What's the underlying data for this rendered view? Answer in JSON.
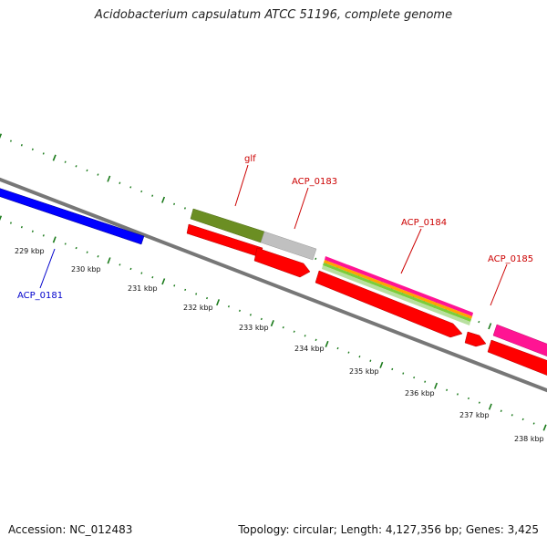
{
  "title": "Acidobacterium capsulatum ATCC 51196, complete genome",
  "footer": {
    "accession": "Accession: NC_012483",
    "summary": "Topology: circular; Length: 4,127,356 bp; Genes: 3,425"
  },
  "colors": {
    "backbone": "#808080",
    "ticks": "#1a7a1a",
    "cds": "#ff0000",
    "gene_olive": "#6b8e23",
    "gene_gray": "#c0c0c0",
    "gene_blue": "#0000ff",
    "gene_pink": "#ff1493",
    "label_red": "#cc0000",
    "label_blue": "#0000cc"
  },
  "ticks": [
    {
      "label": "229 kbp"
    },
    {
      "label": "230 kbp"
    },
    {
      "label": "231 kbp"
    },
    {
      "label": "232 kbp"
    },
    {
      "label": "233 kbp"
    },
    {
      "label": "234 kbp"
    },
    {
      "label": "235 kbp"
    },
    {
      "label": "236 kbp"
    },
    {
      "label": "237 kbp"
    },
    {
      "label": "238 kbp"
    }
  ],
  "gene_labels": [
    {
      "name": "glf",
      "color": "#cc0000"
    },
    {
      "name": "ACP_0183",
      "color": "#cc0000"
    },
    {
      "name": "ACP_0184",
      "color": "#cc0000"
    },
    {
      "name": "ACP_0185",
      "color": "#cc0000"
    },
    {
      "name": "ACP_0181",
      "color": "#0000cc"
    }
  ]
}
